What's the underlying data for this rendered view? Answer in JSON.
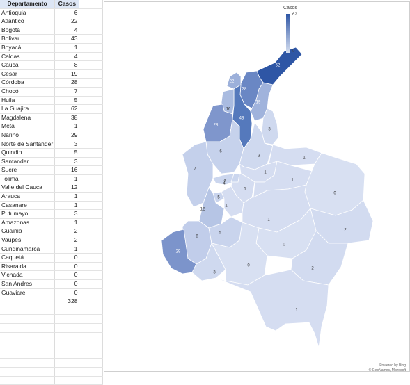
{
  "sheet": {
    "headers": [
      "Departamento",
      "Casos"
    ],
    "rows": [
      [
        "Antioquia",
        "6"
      ],
      [
        "Atlantico",
        "22"
      ],
      [
        "Bogotá",
        "4"
      ],
      [
        "Bolivar",
        "43"
      ],
      [
        "Boyacá",
        "1"
      ],
      [
        "Caldas",
        "4"
      ],
      [
        "Cauca",
        "8"
      ],
      [
        "Cesar",
        "19"
      ],
      [
        "Córdoba",
        "28"
      ],
      [
        "Chocó",
        "7"
      ],
      [
        "Huila",
        "5"
      ],
      [
        "La Guajira",
        "62"
      ],
      [
        "Magdalena",
        "38"
      ],
      [
        "Meta",
        "1"
      ],
      [
        "Nariño",
        "29"
      ],
      [
        "Norte de Santander",
        "3"
      ],
      [
        "Quindio",
        "5"
      ],
      [
        "Santander",
        "3"
      ],
      [
        "Sucre",
        "16"
      ],
      [
        "Tolima",
        "1"
      ],
      [
        "Valle del Cauca",
        "12"
      ],
      [
        "Arauca",
        "1"
      ],
      [
        "Casanare",
        "1"
      ],
      [
        "Putumayo",
        "3"
      ],
      [
        "Amazonas",
        "1"
      ],
      [
        "Guainía",
        "2"
      ],
      [
        "Vaupés",
        "2"
      ],
      [
        "Cundinamarca",
        "1"
      ],
      [
        "Caquetá",
        "0"
      ],
      [
        "Risaralda",
        "0"
      ],
      [
        "Vichada",
        "0"
      ],
      [
        "San Andres",
        "0"
      ],
      [
        "Guaviare",
        "0"
      ]
    ],
    "total": "328"
  },
  "chart_data": {
    "type": "choropleth-map",
    "legend": {
      "title": "Casos",
      "max": "62",
      "min": "0"
    },
    "regions": [
      {
        "name": "La Guajira",
        "value": 62,
        "color": "#2e56a5"
      },
      {
        "name": "Magdalena",
        "value": 38,
        "color": "#6a87c4"
      },
      {
        "name": "Atlantico",
        "value": 22,
        "color": "#9cb0da"
      },
      {
        "name": "Bolivar",
        "value": 43,
        "color": "#5579bc"
      },
      {
        "name": "Sucre",
        "value": 16,
        "color": "#a9bbe0"
      },
      {
        "name": "Córdoba",
        "value": 28,
        "color": "#7f96cc"
      },
      {
        "name": "Cesar",
        "value": 19,
        "color": "#a0b3dc"
      },
      {
        "name": "Norte de Santander",
        "value": 3,
        "color": "#cfd9ef"
      },
      {
        "name": "Antioquia",
        "value": 6,
        "color": "#c6d2ec"
      },
      {
        "name": "Santander",
        "value": 3,
        "color": "#cfd9ef"
      },
      {
        "name": "Chocó",
        "value": 7,
        "color": "#c4d0eb"
      },
      {
        "name": "Boyacá",
        "value": 1,
        "color": "#d5ddf1"
      },
      {
        "name": "Arauca",
        "value": 1,
        "color": "#d5ddf1"
      },
      {
        "name": "Caldas",
        "value": 4,
        "color": "#cbd6ee"
      },
      {
        "name": "Cundinamarca",
        "value": 1,
        "color": "#d5ddf1"
      },
      {
        "name": "Casanare",
        "value": 1,
        "color": "#d5ddf1"
      },
      {
        "name": "Vichada",
        "value": 0,
        "color": "#d8e0f2"
      },
      {
        "name": "Bogotá",
        "value": 4,
        "color": "#cbd6ee"
      },
      {
        "name": "Quindio",
        "value": 5,
        "color": "#c9d4ed"
      },
      {
        "name": "Tolima",
        "value": 1,
        "color": "#d5ddf1"
      },
      {
        "name": "Valle del Cauca",
        "value": 12,
        "color": "#b6c5e5"
      },
      {
        "name": "Meta",
        "value": 1,
        "color": "#d5ddf1"
      },
      {
        "name": "Cauca",
        "value": 8,
        "color": "#c1cdea"
      },
      {
        "name": "Huila",
        "value": 5,
        "color": "#c9d4ed"
      },
      {
        "name": "Guainía",
        "value": 2,
        "color": "#d2dbf0"
      },
      {
        "name": "Guaviare",
        "value": 0,
        "color": "#d8e0f2"
      },
      {
        "name": "Nariño",
        "value": 29,
        "color": "#7c94cb"
      },
      {
        "name": "Putumayo",
        "value": 3,
        "color": "#cfd9ef"
      },
      {
        "name": "Caquetá",
        "value": 0,
        "color": "#d8e0f2"
      },
      {
        "name": "Vaupés",
        "value": 2,
        "color": "#d2dbf0"
      },
      {
        "name": "Amazonas",
        "value": 1,
        "color": "#d5ddf1"
      }
    ]
  },
  "credits": {
    "line1": "Powered by Bing",
    "line2": "© GeoNames, Microsoft"
  }
}
